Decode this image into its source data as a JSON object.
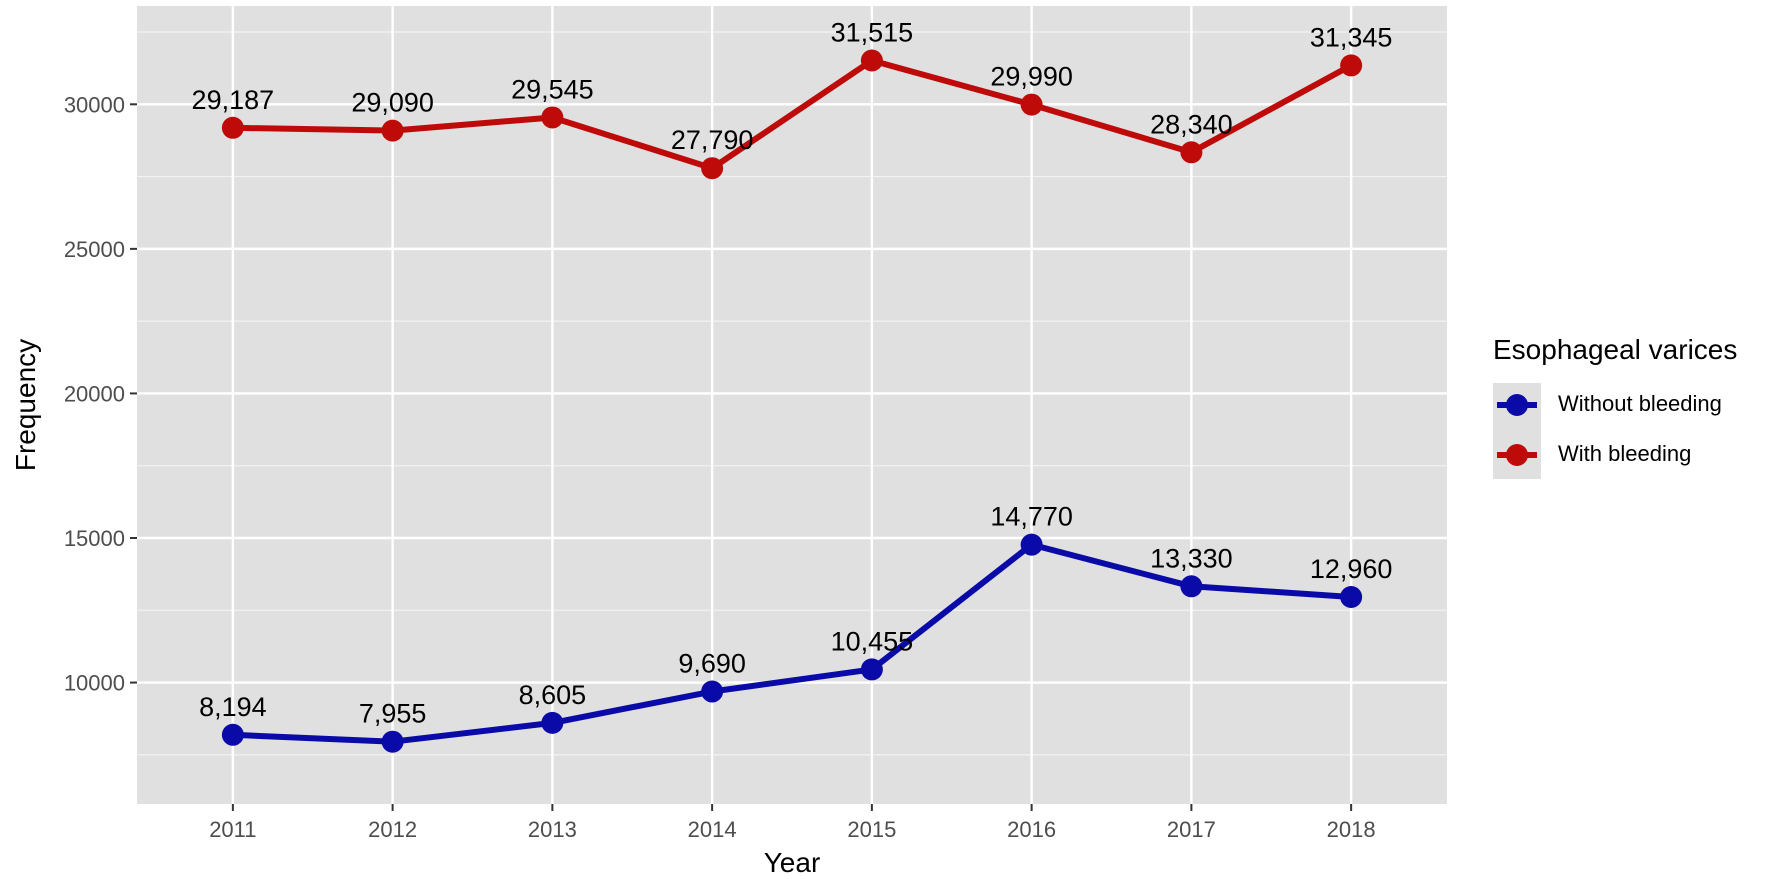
{
  "chart_data": {
    "type": "line",
    "x": [
      2011,
      2012,
      2013,
      2014,
      2015,
      2016,
      2017,
      2018
    ],
    "series": [
      {
        "name": "Without bleeding",
        "color": "#0a0aa8",
        "values": [
          8194,
          7955,
          8605,
          9690,
          10455,
          14770,
          13330,
          12960
        ],
        "labels": [
          "8,194",
          "7,955",
          "8,605",
          "9,690",
          "10,455",
          "14,770",
          "13,330",
          "12,960"
        ]
      },
      {
        "name": "With bleeding",
        "color": "#bf0a0a",
        "values": [
          29187,
          29090,
          29545,
          27790,
          31515,
          29990,
          28340,
          31345
        ],
        "labels": [
          "29,187",
          "29,090",
          "29,545",
          "27,790",
          "31,515",
          "29,990",
          "28,340",
          "31,345"
        ]
      }
    ],
    "xlabel": "Year",
    "ylabel": "Frequency",
    "ylim": [
      5800,
      33400
    ],
    "yticks": [
      10000,
      15000,
      20000,
      25000,
      30000
    ],
    "grid": true,
    "legend": {
      "title": "Esophageal varices",
      "position": "right"
    }
  }
}
